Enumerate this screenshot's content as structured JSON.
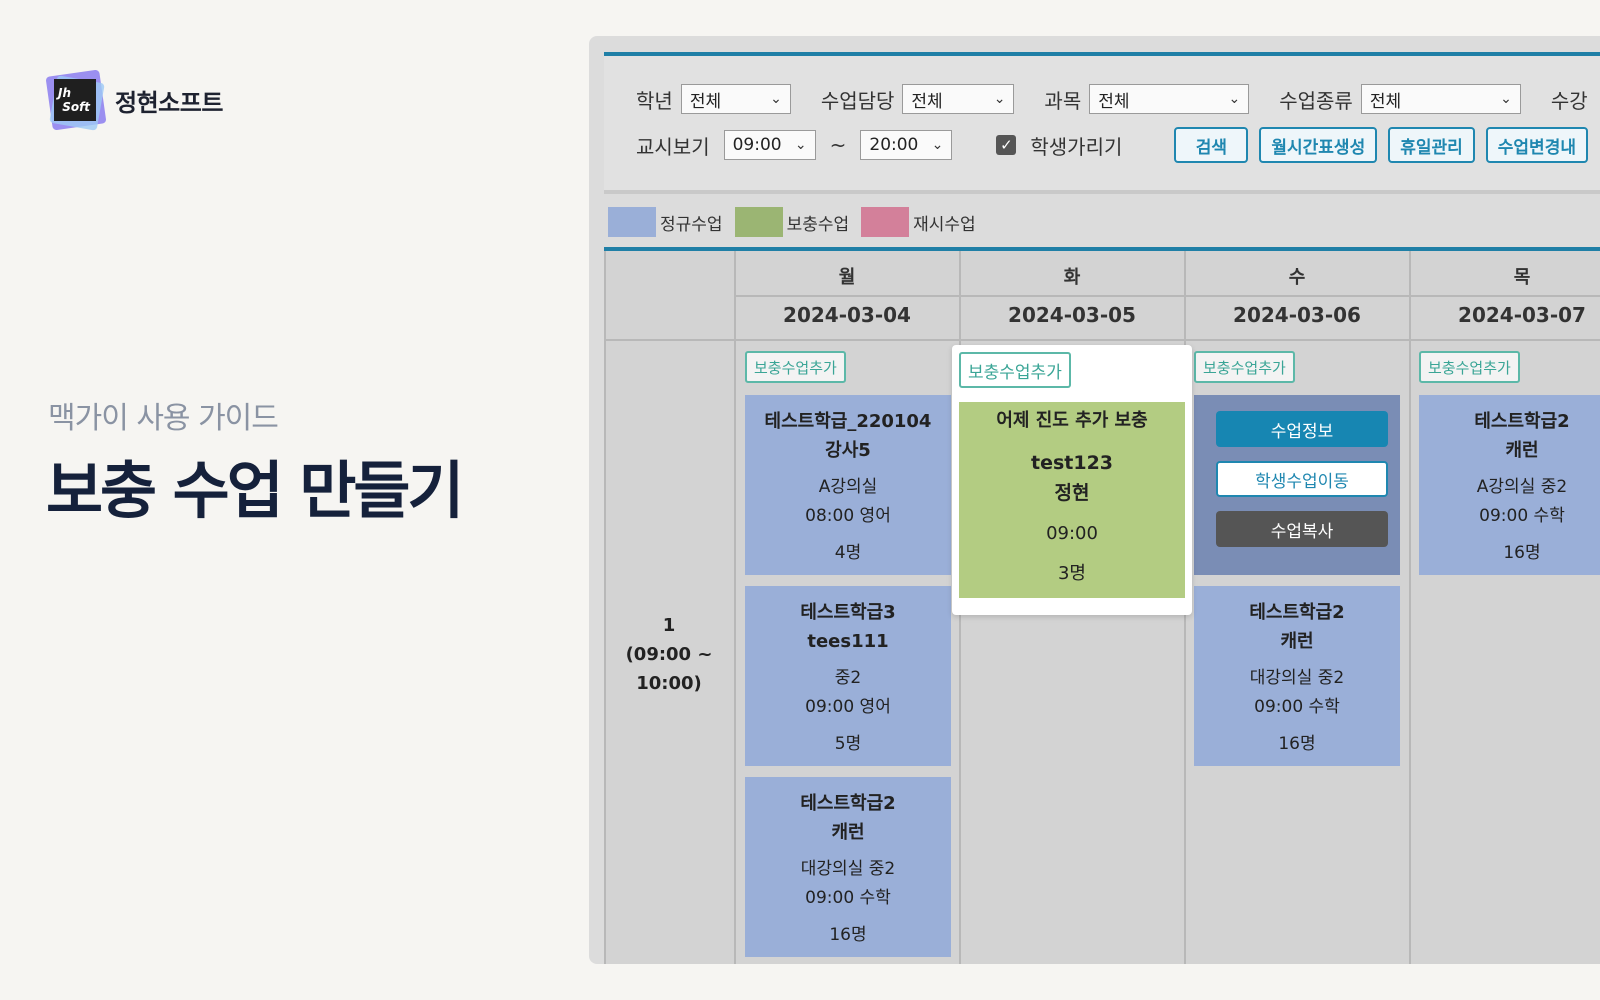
{
  "brand": {
    "name": "정현소프트",
    "logo_text_1": "Jh",
    "logo_text_2": "Soft"
  },
  "guide": {
    "subtitle": "맥가이 사용 가이드",
    "title": "보충 수업 만들기"
  },
  "filters": {
    "grade_label": "학년",
    "grade_value": "전체",
    "teacher_label": "수업담당",
    "teacher_value": "전체",
    "subject_label": "과목",
    "subject_value": "전체",
    "class_type_label": "수업종류",
    "class_type_value": "전체",
    "overflow_label": "수강",
    "period_label": "교시보기",
    "start_time": "09:00",
    "tilde": "~",
    "end_time": "20:00",
    "hide_students_label": "학생가리기",
    "hide_students_checked": true
  },
  "buttons": {
    "search": "검색",
    "monthly": "월시간표생성",
    "holiday": "휴일관리",
    "change": "수업변경내"
  },
  "legend": [
    {
      "label": "정규수업",
      "color": "#9aafd8"
    },
    {
      "label": "보충수업",
      "color": "#9bb573"
    },
    {
      "label": "재시수업",
      "color": "#d3809a"
    }
  ],
  "days": [
    {
      "name": "월",
      "date": "2024-03-04"
    },
    {
      "name": "화",
      "date": "2024-03-05"
    },
    {
      "name": "수",
      "date": "2024-03-06"
    },
    {
      "name": "목",
      "date": "2024-03-07"
    }
  ],
  "period": {
    "line1": "1",
    "line2": "(09:00 ~",
    "line3": "10:00)"
  },
  "add_supplement_label": "보충수업추가",
  "cards": {
    "mon1": {
      "title": "테스트학급_220104",
      "teacher": "강사5",
      "room": "A강의실",
      "time": "08:00   영어",
      "count": "4명"
    },
    "mon2": {
      "title": "테스트학급3",
      "teacher": "tees111",
      "room": "중2",
      "time": "09:00   영어",
      "count": "5명"
    },
    "mon3": {
      "title": "테스트학급2",
      "teacher": "캐런",
      "room": "대강의실   중2",
      "time": "09:00   수학",
      "count": "16명"
    },
    "tue1": {
      "title": "어제 진도 추가 보충",
      "teacher": "test123",
      "teacher2": "정현",
      "time": "09:00",
      "count": "3명"
    },
    "wed2": {
      "title": "테스트학급2",
      "teacher": "캐런",
      "room": "대강의실   중2",
      "time": "09:00   수학",
      "count": "16명"
    },
    "thu1": {
      "title": "테스트학급2",
      "teacher": "캐런",
      "room": "A강의실   중2",
      "time": "09:00   수학",
      "count": "16명"
    }
  },
  "context_menu": {
    "info": "수업정보",
    "move": "학생수업이동",
    "copy": "수업복사"
  }
}
